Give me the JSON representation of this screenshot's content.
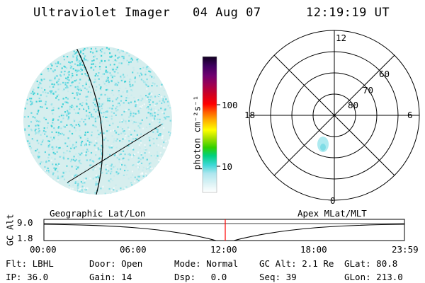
{
  "header": {
    "title": "Ultraviolet Imager",
    "date": "04 Aug 07",
    "time": "12:19:19 UT"
  },
  "colorbar": {
    "unit_label": "photon cm⁻²s⁻¹",
    "ticks": [
      "100",
      "10"
    ]
  },
  "polar": {
    "hour_labels": {
      "top": "12",
      "bottom": "0",
      "left": "18",
      "right": "6"
    },
    "lat_labels": [
      "60",
      "70",
      "80"
    ]
  },
  "timeline": {
    "y_axis_label": "GC Alt",
    "y_ticks": [
      "9.0",
      "1.8"
    ],
    "left_label": "Geographic Lat/Lon",
    "right_label": "Apex MLat/MLT",
    "x_ticks": [
      "00:00",
      "06:00",
      "12:00",
      "18:00",
      "23:59"
    ],
    "marker_color": "#ff0000"
  },
  "info": {
    "row1": [
      {
        "label": "Flt:",
        "value": "LBHL"
      },
      {
        "label": "Door:",
        "value": "Open"
      },
      {
        "label": "Mode:",
        "value": "Normal"
      },
      {
        "label": "GC Alt:",
        "value": "2.1 Re"
      },
      {
        "label": "GLat:",
        "value": "80.8"
      }
    ],
    "row2": [
      {
        "label": "IP:",
        "value": "36.0"
      },
      {
        "label": "Gain:",
        "value": "14"
      },
      {
        "label": "Dsp:",
        "value": "0.0"
      },
      {
        "label": "Seq:",
        "value": "39"
      },
      {
        "label": "GLon:",
        "value": "213.0"
      }
    ]
  }
}
